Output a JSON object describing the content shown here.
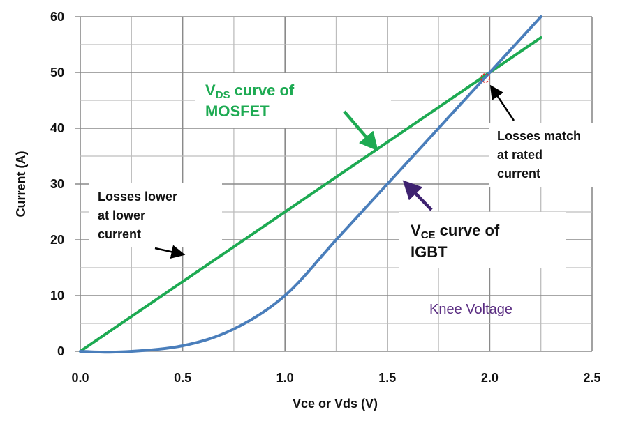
{
  "chart_data": {
    "type": "line",
    "xlabel": "Vce or Vds (V)",
    "ylabel": "Current (A)",
    "xlim": [
      0,
      2.5
    ],
    "ylim": [
      0,
      60
    ],
    "xticks": [
      "0.0",
      "0.5",
      "1.0",
      "1.5",
      "2.0",
      "2.5"
    ],
    "yticks": [
      "0",
      "10",
      "20",
      "30",
      "40",
      "50",
      "60"
    ],
    "grid": true,
    "series": [
      {
        "color": "#1daa52",
        "x": [
          0,
          2.25
        ],
        "y": [
          0,
          56.25
        ]
      },
      {
        "color": "#4a7ebb",
        "x": [
          0,
          0.2,
          0.5,
          0.75,
          1.0,
          1.25,
          1.5,
          1.75,
          2.0,
          2.25
        ],
        "y": [
          0,
          -0.1,
          1,
          4,
          10,
          20,
          30,
          40,
          50,
          60
        ]
      }
    ],
    "annotations": {
      "mosfet_line1_main": "V",
      "mosfet_line1_sub": "DS",
      "mosfet_line1_rest": " curve of",
      "mosfet_line2": "MOSFET",
      "igbt_line1_main": "V",
      "igbt_line1_sub": "CE",
      "igbt_line1_rest": " curve of",
      "igbt_line2": "IGBT",
      "lower": [
        "Losses lower",
        "at lower",
        "current"
      ],
      "match": [
        "Losses match",
        "at rated",
        "current"
      ],
      "knee": "Knee Voltage"
    },
    "colors": {
      "mosfet": "#1daa52",
      "igbt": "#4a7ebb",
      "knee": "#5a2d82",
      "marker": "#e0282a"
    }
  }
}
